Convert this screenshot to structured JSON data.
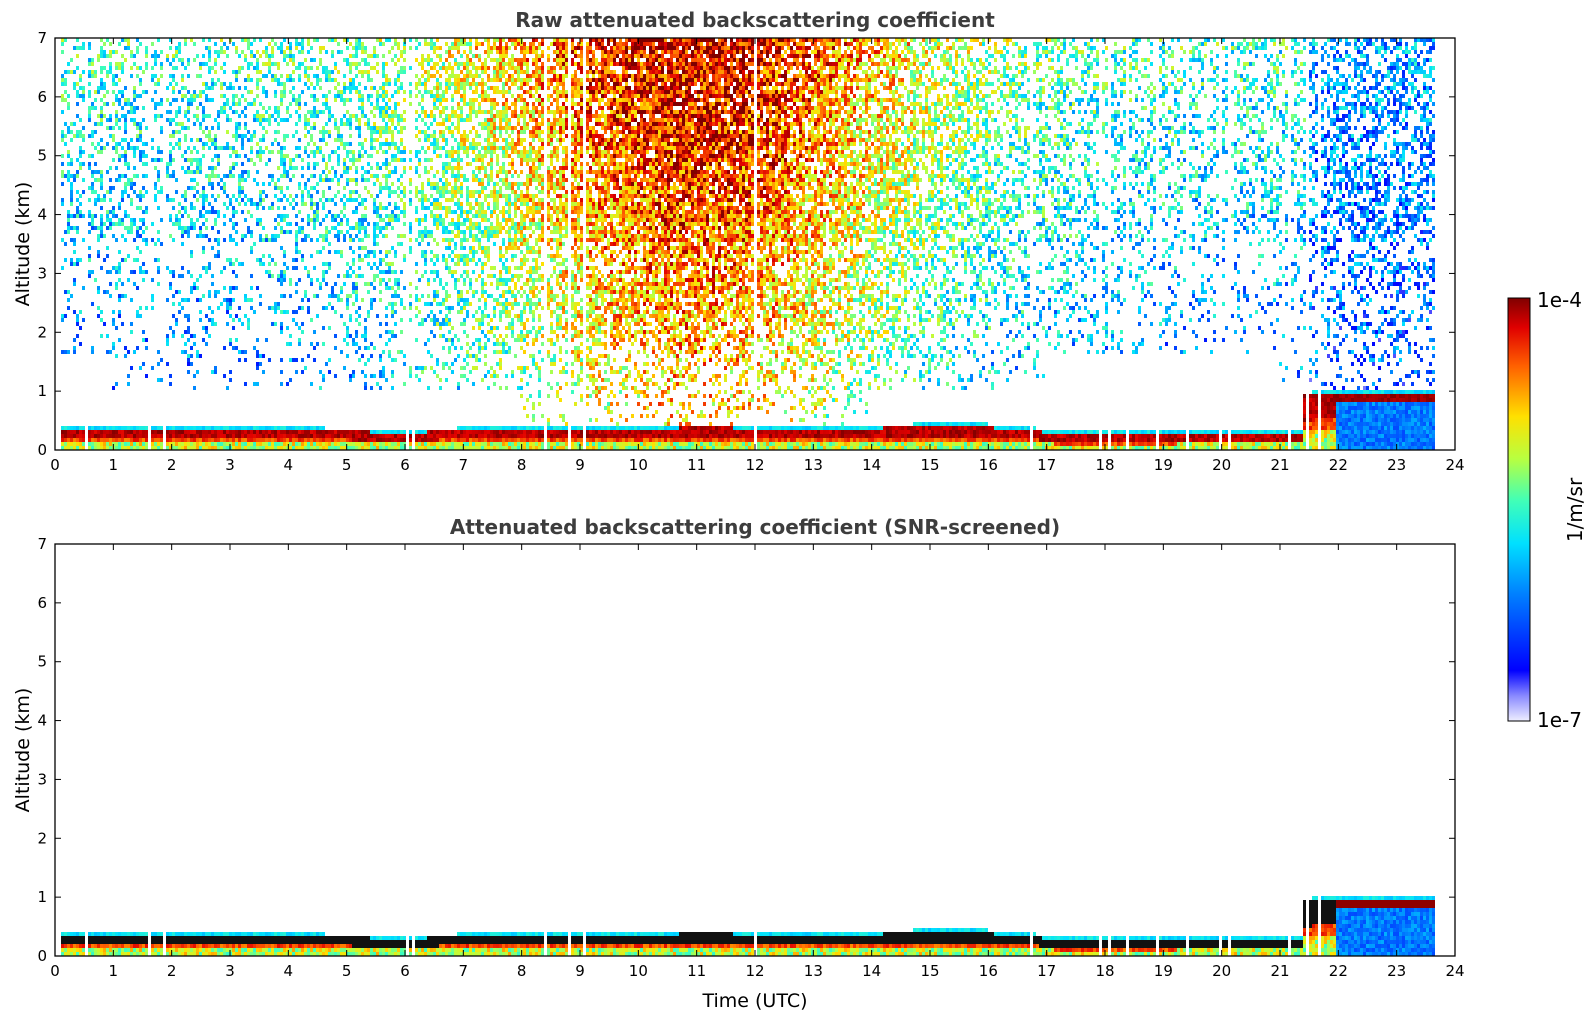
{
  "chart_data": [
    {
      "type": "heatmap",
      "title": "Raw attenuated backscattering coefficient",
      "xlabel": "",
      "ylabel": "Altitude (km)",
      "xlim": [
        0,
        24
      ],
      "ylim": [
        0,
        7
      ],
      "x_ticks": [
        "0",
        "1",
        "2",
        "3",
        "4",
        "5",
        "6",
        "7",
        "8",
        "9",
        "10",
        "11",
        "12",
        "13",
        "14",
        "15",
        "16",
        "17",
        "18",
        "19",
        "20",
        "21",
        "22",
        "23",
        "24"
      ],
      "y_ticks": [
        "0",
        "1",
        "2",
        "3",
        "4",
        "5",
        "6",
        "7"
      ],
      "field": "raw",
      "boundary_layer_top_km": [
        [
          0,
          0.32
        ],
        [
          2,
          0.33
        ],
        [
          4,
          0.32
        ],
        [
          6,
          0.3
        ],
        [
          8,
          0.33
        ],
        [
          8.8,
          0.37
        ],
        [
          10.5,
          0.37
        ],
        [
          11,
          0.38
        ],
        [
          12,
          0.37
        ],
        [
          14,
          0.37
        ],
        [
          15.8,
          0.4
        ],
        [
          17,
          0.3
        ],
        [
          18,
          0.25
        ],
        [
          19.5,
          0.3
        ],
        [
          21.4,
          0.3
        ],
        [
          21.5,
          0.92
        ],
        [
          22,
          0.97
        ],
        [
          23.75,
          0.97
        ]
      ],
      "data_end_utc": 23.75
    },
    {
      "type": "heatmap",
      "title": "Attenuated backscattering coefficient (SNR-screened)",
      "xlabel": "Time (UTC)",
      "ylabel": "Altitude (km)",
      "xlim": [
        0,
        24
      ],
      "ylim": [
        0,
        7
      ],
      "x_ticks": [
        "0",
        "1",
        "2",
        "3",
        "4",
        "5",
        "6",
        "7",
        "8",
        "9",
        "10",
        "11",
        "12",
        "13",
        "14",
        "15",
        "16",
        "17",
        "18",
        "19",
        "20",
        "21",
        "22",
        "23",
        "24"
      ],
      "y_ticks": [
        "0",
        "1",
        "2",
        "3",
        "4",
        "5",
        "6",
        "7"
      ],
      "field": "snr_screened",
      "data_end_utc": 23.75
    }
  ],
  "colorbar": {
    "min_label": "1e-7",
    "max_label": "1e-4",
    "unit": "1/m/sr",
    "scale": "log",
    "colormap": "jet"
  }
}
